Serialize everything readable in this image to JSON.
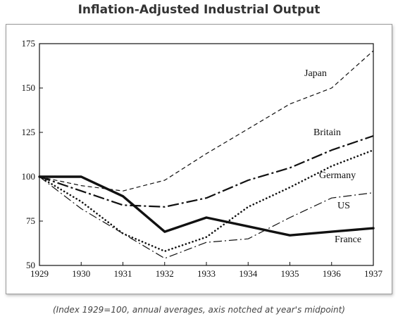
{
  "chart_data": {
    "type": "line",
    "title": "Inflation-Adjusted Industrial Output",
    "caption": "(Index 1929=100, annual averages, axis notched at year's midpoint)",
    "x": [
      "1929",
      "1930",
      "1931",
      "1932",
      "1933",
      "1934",
      "1935",
      "1936",
      "1937"
    ],
    "yticks": [
      "50",
      "75",
      "100",
      "125",
      "150",
      "175"
    ],
    "ylim": [
      50,
      175
    ],
    "series": [
      {
        "name": "Japan",
        "style": "short-dash",
        "values": [
          100,
          95,
          92,
          98,
          113,
          127,
          141,
          150,
          171
        ]
      },
      {
        "name": "Britain",
        "style": "long-dash",
        "values": [
          100,
          92,
          84,
          83,
          88,
          98,
          105,
          115,
          123
        ]
      },
      {
        "name": "Germany",
        "style": "dotted",
        "values": [
          100,
          86,
          68,
          58,
          66,
          83,
          94,
          106,
          115
        ]
      },
      {
        "name": "US",
        "style": "dash-dot",
        "values": [
          100,
          82,
          68,
          54,
          63,
          65,
          77,
          88,
          91
        ]
      },
      {
        "name": "France",
        "style": "solid-thick",
        "values": [
          100,
          100,
          89,
          69,
          77,
          72,
          67,
          69,
          71
        ]
      }
    ],
    "legend": "inline-labels-right",
    "grid": false,
    "line_color": "#111111"
  }
}
